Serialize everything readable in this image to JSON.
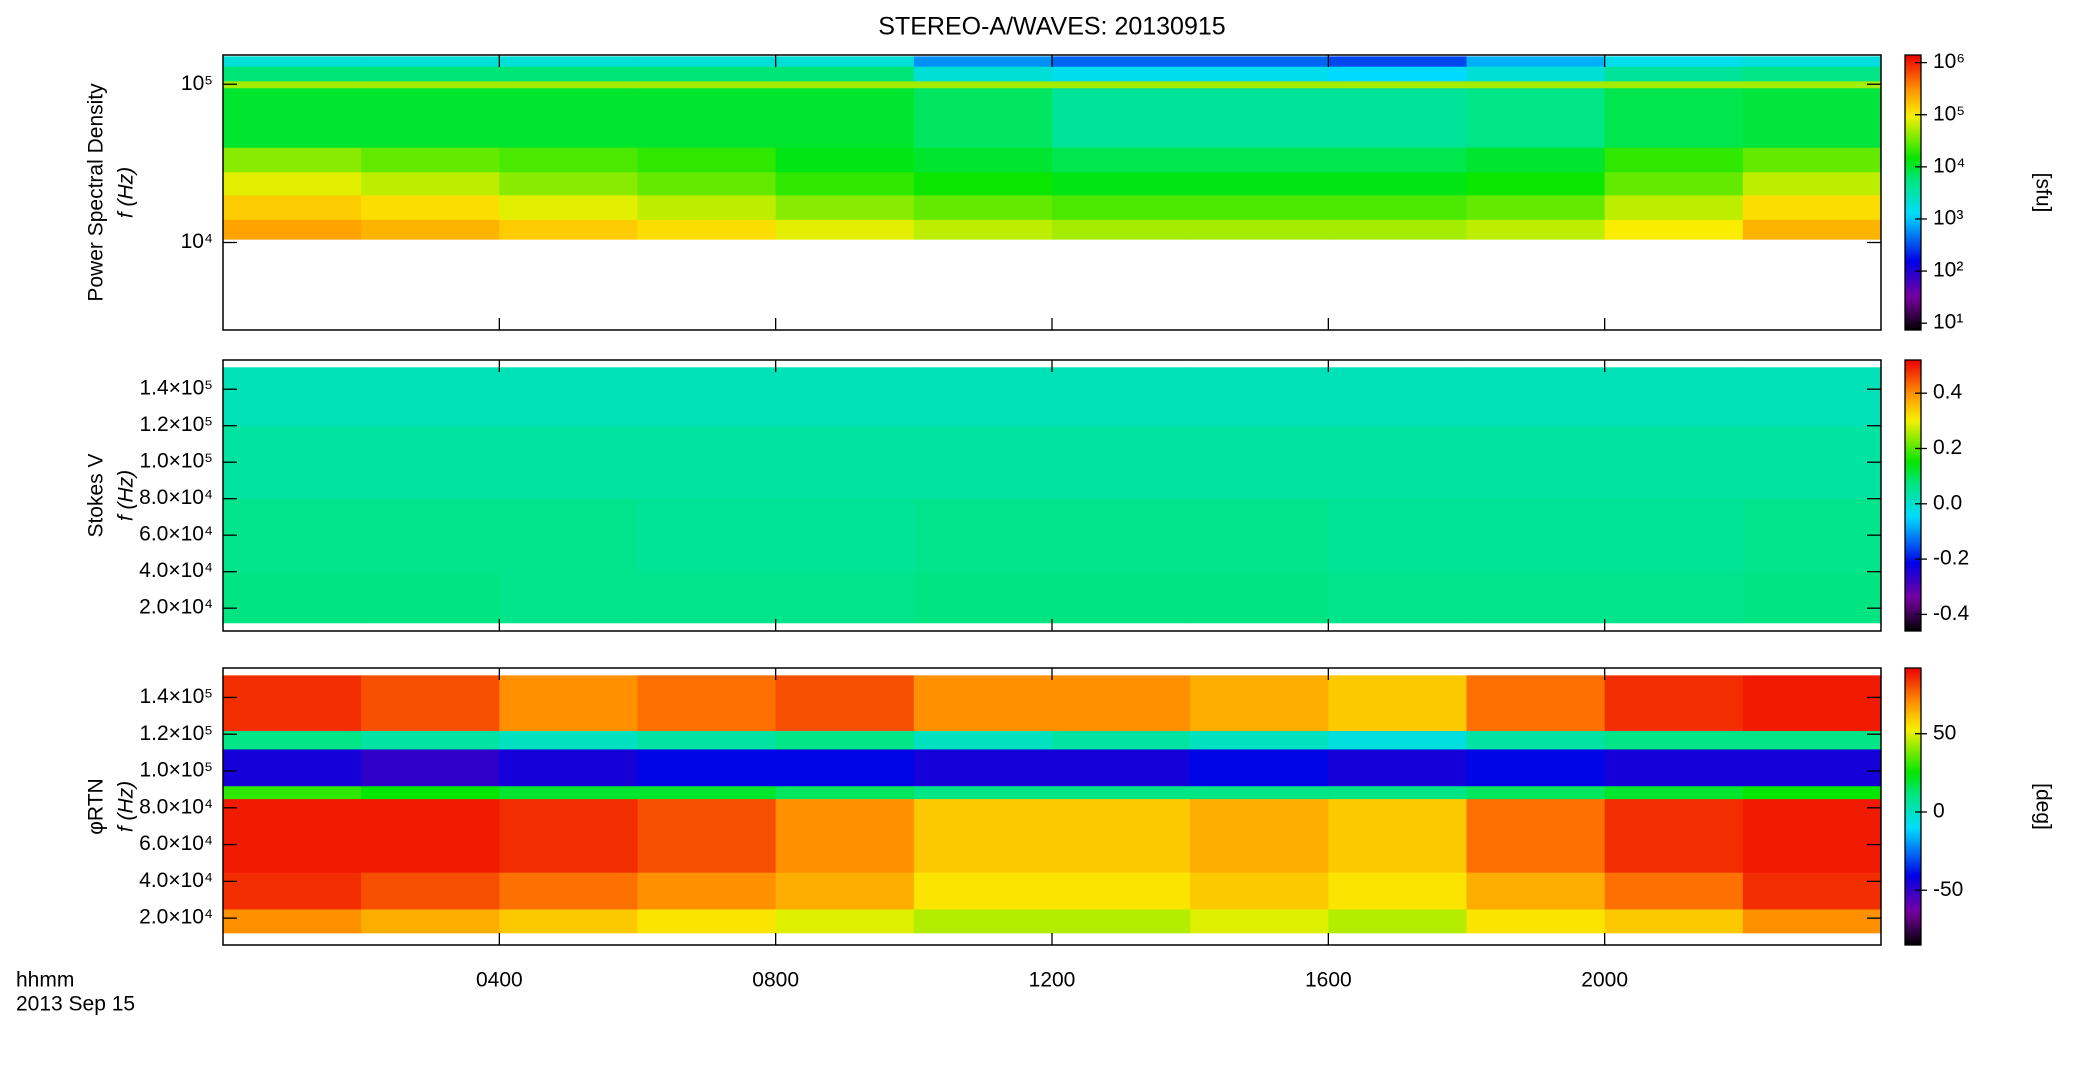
{
  "chart_data": [
    {
      "type": "heatmap",
      "title": "STEREO-A/WAVES: 20130915",
      "ylabel": [
        "Power Spectral Density",
        "f (Hz)"
      ],
      "clabel": "[sfu]",
      "xlim": [
        0,
        24
      ],
      "xticks": [
        4,
        8,
        12,
        16,
        20
      ],
      "ylim": [
        2800,
        153000
      ],
      "ylog": true,
      "yticks": [
        {
          "value": 10000,
          "label": "10⁴"
        },
        {
          "value": 100000,
          "label": "10⁵"
        }
      ],
      "clim": [
        7.4,
        1400000
      ],
      "clog": true,
      "cticks": [
        {
          "value": 10,
          "label": "10¹"
        },
        {
          "value": 100,
          "label": "10²"
        },
        {
          "value": 1000,
          "label": "10³"
        },
        {
          "value": 10000,
          "label": "10⁴"
        },
        {
          "value": 100000,
          "label": "10⁵"
        },
        {
          "value": 1000000,
          "label": "10⁶"
        }
      ],
      "x_edges": [
        0,
        2,
        4,
        6,
        8,
        10,
        12,
        14,
        16,
        18,
        20,
        22,
        24
      ],
      "y_edges": [
        10500,
        14000,
        20000,
        28000,
        40000,
        95000,
        105000,
        130000,
        150000
      ],
      "values": [
        [
          250000,
          200000,
          150000,
          120000,
          80000,
          60000,
          50000,
          50000,
          50000,
          60000,
          100000,
          200000
        ],
        [
          150000,
          120000,
          80000,
          60000,
          40000,
          30000,
          25000,
          25000,
          25000,
          30000,
          60000,
          120000
        ],
        [
          80000,
          60000,
          40000,
          30000,
          20000,
          15000,
          12000,
          12000,
          12000,
          15000,
          30000,
          60000
        ],
        [
          40000,
          30000,
          25000,
          20000,
          12000,
          10000,
          8000,
          8000,
          8000,
          10000,
          20000,
          30000
        ],
        [
          10000,
          10000,
          10000,
          10000,
          10000,
          7000,
          4000,
          4000,
          4000,
          5000,
          8000,
          9000
        ],
        [
          50000,
          50000,
          50000,
          50000,
          50000,
          50000,
          50000,
          50000,
          50000,
          50000,
          50000,
          50000
        ],
        [
          6000,
          6000,
          6000,
          6000,
          6000,
          2000,
          1500,
          1500,
          1200,
          2000,
          4000,
          5000
        ],
        [
          2000,
          2000,
          2000,
          2000,
          2000,
          600,
          400,
          400,
          300,
          800,
          1500,
          1800
        ]
      ]
    },
    {
      "type": "heatmap",
      "ylabel": [
        "Stokes V",
        "f (Hz)"
      ],
      "xlim": [
        0,
        24
      ],
      "xticks": [
        4,
        8,
        12,
        16,
        20
      ],
      "ylim": [
        7500,
        156000
      ],
      "yticks": [
        {
          "value": 20000,
          "label": "2.0×10⁴"
        },
        {
          "value": 40000,
          "label": "4.0×10⁴"
        },
        {
          "value": 60000,
          "label": "6.0×10⁴"
        },
        {
          "value": 80000,
          "label": "8.0×10⁴"
        },
        {
          "value": 100000,
          "label": "1.0×10⁵"
        },
        {
          "value": 120000,
          "label": "1.2×10⁵"
        },
        {
          "value": 140000,
          "label": "1.4×10⁵"
        }
      ],
      "clim": [
        -0.46,
        0.52
      ],
      "cticks": [
        -0.4,
        -0.2,
        {
          "value": 0,
          "label": "0.0"
        },
        0.2,
        0.4
      ],
      "x_edges": [
        0,
        2,
        4,
        6,
        8,
        10,
        12,
        14,
        16,
        18,
        20,
        22,
        24
      ],
      "y_edges": [
        12000,
        40000,
        80000,
        120000,
        152000
      ],
      "values": [
        [
          0.07,
          0.07,
          0.06,
          0.06,
          0.06,
          0.07,
          0.07,
          0.07,
          0.06,
          0.06,
          0.06,
          0.07
        ],
        [
          0.06,
          0.06,
          0.06,
          0.05,
          0.05,
          0.06,
          0.06,
          0.06,
          0.05,
          0.05,
          0.05,
          0.06
        ],
        [
          0.04,
          0.04,
          0.04,
          0.04,
          0.04,
          0.04,
          0.04,
          0.04,
          0.04,
          0.04,
          0.04,
          0.04
        ],
        [
          0.02,
          0.02,
          0.02,
          0.02,
          0.02,
          0.02,
          0.02,
          0.02,
          0.02,
          0.02,
          0.02,
          0.02
        ]
      ]
    },
    {
      "type": "heatmap",
      "ylabel": [
        "φRTN",
        "f (Hz)"
      ],
      "clabel": "[deg]",
      "xlabel": [
        "hhmm",
        "2013 Sep 15"
      ],
      "xlim": [
        0,
        24
      ],
      "xticks": [
        {
          "value": 4,
          "label": "0400"
        },
        {
          "value": 8,
          "label": "0800"
        },
        {
          "value": 12,
          "label": "1200"
        },
        {
          "value": 16,
          "label": "1600"
        },
        {
          "value": 20,
          "label": "2000"
        }
      ],
      "ylim": [
        5400,
        156000
      ],
      "yticks": [
        {
          "value": 20000,
          "label": "2.0×10⁴"
        },
        {
          "value": 40000,
          "label": "4.0×10⁴"
        },
        {
          "value": 60000,
          "label": "6.0×10⁴"
        },
        {
          "value": 80000,
          "label": "8.0×10⁴"
        },
        {
          "value": 100000,
          "label": "1.0×10⁵"
        },
        {
          "value": 120000,
          "label": "1.2×10⁵"
        },
        {
          "value": 140000,
          "label": "1.4×10⁵"
        }
      ],
      "clim": [
        -85,
        92
      ],
      "cticks": [
        -50,
        0,
        50
      ],
      "x_edges": [
        0,
        2,
        4,
        6,
        8,
        10,
        12,
        14,
        16,
        18,
        20,
        22,
        24
      ],
      "y_edges": [
        12000,
        25000,
        45000,
        85000,
        92000,
        112000,
        122000,
        152000
      ],
      "values": [
        [
          70,
          65,
          60,
          55,
          50,
          45,
          45,
          50,
          45,
          55,
          60,
          70
        ],
        [
          85,
          80,
          75,
          70,
          65,
          55,
          55,
          60,
          55,
          65,
          75,
          85
        ],
        [
          88,
          88,
          85,
          80,
          70,
          60,
          60,
          65,
          60,
          75,
          85,
          88
        ],
        [
          30,
          25,
          20,
          20,
          15,
          10,
          10,
          10,
          10,
          15,
          20,
          25
        ],
        [
          -45,
          -50,
          -45,
          -40,
          -40,
          -45,
          -45,
          -40,
          -45,
          -40,
          -45,
          -45
        ],
        [
          10,
          5,
          0,
          5,
          10,
          0,
          5,
          0,
          -5,
          5,
          10,
          10
        ],
        [
          85,
          80,
          70,
          75,
          80,
          70,
          70,
          65,
          60,
          75,
          85,
          88
        ]
      ]
    }
  ]
}
